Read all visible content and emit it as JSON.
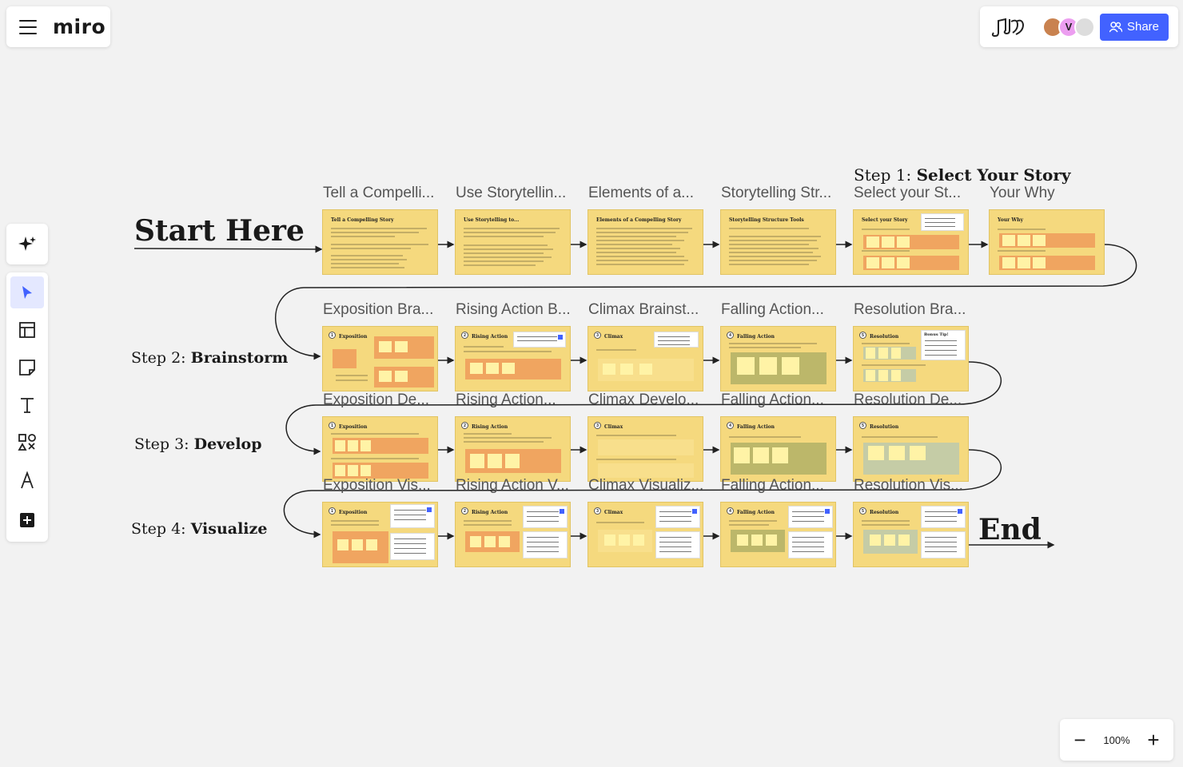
{
  "app": {
    "logo": "miro"
  },
  "header": {
    "share_label": "Share",
    "avatar_initial": "V",
    "reactions_icon": "music-notes-icon"
  },
  "toolbar": {
    "tools": [
      "ai-sparkle",
      "select",
      "templates",
      "sticky-note",
      "text",
      "shapes",
      "pen",
      "add"
    ]
  },
  "zoom": {
    "level": "100%"
  },
  "board": {
    "start_label": "Start Here",
    "end_label": "End",
    "steps": [
      {
        "prefix": "Step 1:",
        "name": "Select Your Story"
      },
      {
        "prefix": "Step 2:",
        "name": "Brainstorm"
      },
      {
        "prefix": "Step 3:",
        "name": "Develop"
      },
      {
        "prefix": "Step 4:",
        "name": "Visualize"
      }
    ],
    "rows": [
      {
        "titles": [
          "Tell a Compelli...",
          "Use Storytellin...",
          "Elements of a...",
          "Storytelling Str...",
          "Select your St...",
          "Your Why"
        ],
        "headings": [
          "Tell a Compelling Story",
          "Use Storytelling to...",
          "Elements of a Compelling Story",
          "Storytelling Structure Tools",
          "Select your Story",
          "Your Why"
        ]
      },
      {
        "titles": [
          "Exposition Bra...",
          "Rising Action B...",
          "Climax Brainst...",
          "Falling Action...",
          "Resolution Bra..."
        ],
        "headings": [
          "Exposition",
          "Rising Action",
          "Climax",
          "Falling Action",
          "Resolution"
        ],
        "extra": "Bonus Tip!"
      },
      {
        "titles": [
          "Exposition De...",
          "Rising Action...",
          "Climax Develo...",
          "Falling Action...",
          "Resolution De..."
        ],
        "headings": [
          "Exposition",
          "Rising Action",
          "Climax",
          "Falling Action",
          "Resolution"
        ]
      },
      {
        "titles": [
          "Exposition Vis...",
          "Rising Action V...",
          "Climax Visualiz...",
          "Falling Action...",
          "Resolution Vis..."
        ],
        "headings": [
          "Exposition",
          "Rising Action",
          "Climax",
          "Falling Action",
          "Resolution"
        ]
      }
    ]
  }
}
